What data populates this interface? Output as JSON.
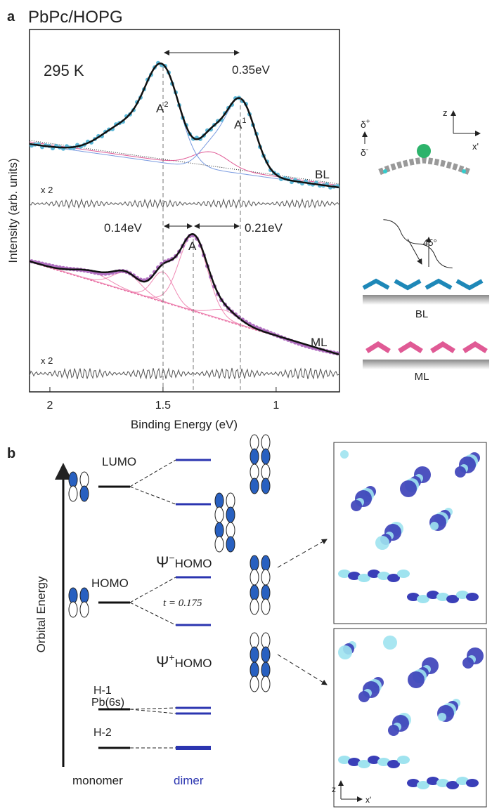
{
  "panel_a": {
    "label": "a",
    "title": "PbPc/HOPG",
    "temperature": "295 K",
    "splitting_top": "0.35eV",
    "peak_a2": {
      "base": "A",
      "sup": "2"
    },
    "peak_a1": {
      "base": "A",
      "sup": "1"
    },
    "bl_label": "BL",
    "bl_residual": "x 2",
    "splitting_left": "0.14eV",
    "splitting_right": "0.21eV",
    "peak_a": "A",
    "ml_label": "ML",
    "ml_residual": "x 2",
    "y_label": "Intensity (arb. units)",
    "x_label": "Binding Energy (eV)",
    "xlim": [
      2.09,
      0.72
    ],
    "xticks": [
      2,
      1.5,
      1
    ]
  },
  "geometry": {
    "delta_plus": {
      "base": "δ",
      "sup": "+"
    },
    "delta_minus": {
      "base": "δ",
      "sup": "-"
    },
    "axis_z": "z",
    "axis_x": "x'",
    "angle": "45°",
    "bl": "BL",
    "ml": "ML"
  },
  "panel_b": {
    "label": "b",
    "y_label": "Orbital Energy",
    "lumo": "LUMO",
    "homo": "HOMO",
    "h1": "H-1",
    "pb6s": "Pb(6s)",
    "h2": "H-2",
    "psi_minus": {
      "base": "Ψ",
      "sup": "−",
      "rest": "HOMO"
    },
    "transfer": "t = 0.175",
    "psi_plus": {
      "base": "Ψ",
      "sup": "+",
      "rest": "HOMO"
    },
    "monomer": "monomer",
    "dimer": "dimer",
    "axis_z": "z",
    "axis_x": "x'"
  }
}
